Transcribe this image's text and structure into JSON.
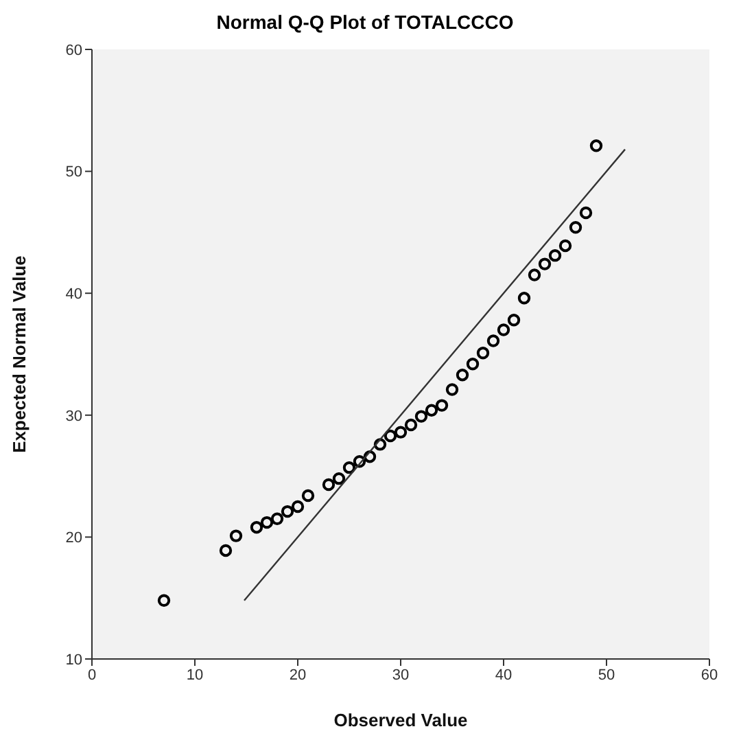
{
  "chart_data": {
    "type": "scatter",
    "title": "Normal Q-Q Plot of TOTALCCCO",
    "xlabel": "Observed Value",
    "ylabel": "Expected Normal Value",
    "xlim": [
      0,
      60
    ],
    "xticks": [
      0,
      10,
      20,
      30,
      40,
      50,
      60
    ],
    "ylim": [
      10,
      60
    ],
    "yticks": [
      10,
      20,
      30,
      40,
      50,
      60
    ],
    "grid": false,
    "series": [
      {
        "color": "#000000",
        "marker": "circle",
        "x": [
          7,
          13,
          14,
          16,
          17,
          18,
          19,
          20,
          21,
          23,
          24,
          25,
          26,
          27,
          28,
          29,
          30,
          31,
          32,
          33,
          34,
          35,
          36,
          37,
          38,
          39,
          40,
          41,
          42,
          43,
          44,
          45,
          46,
          47,
          48,
          49
        ],
        "values": [
          14.8,
          18.9,
          20.1,
          20.8,
          21.2,
          21.5,
          22.1,
          22.5,
          23.4,
          24.3,
          24.8,
          25.7,
          26.2,
          26.6,
          27.6,
          28.3,
          28.6,
          29.2,
          29.9,
          30.4,
          30.8,
          32.1,
          33.3,
          34.2,
          35.1,
          36.1,
          37.0,
          37.8,
          39.6,
          41.5,
          42.4,
          43.1,
          43.9,
          45.4,
          46.6,
          52.1
        ]
      },
      {
        "type": "line",
        "color": "#333333",
        "marker": "none",
        "x": [
          14.8,
          51.8
        ],
        "values": [
          14.8,
          51.8
        ]
      }
    ]
  }
}
